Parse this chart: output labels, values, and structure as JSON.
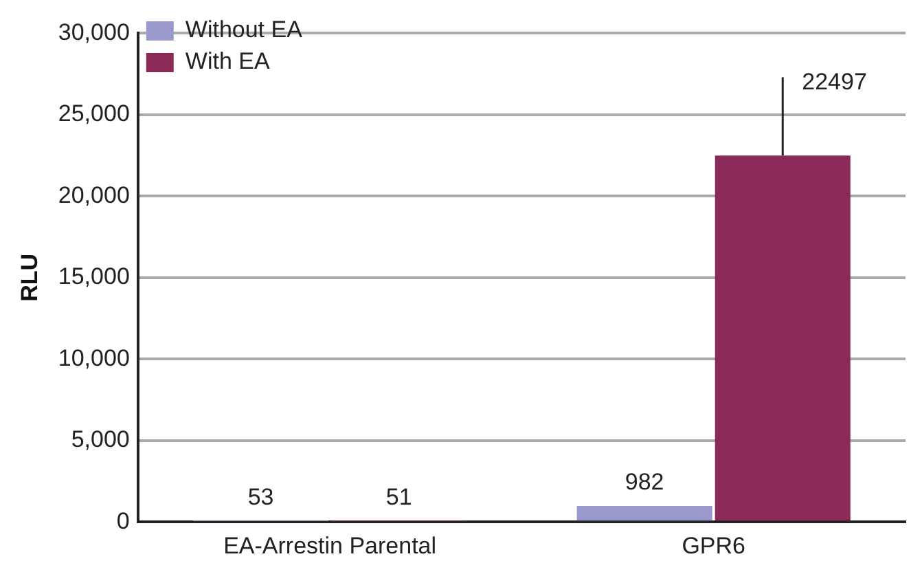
{
  "chart_data": {
    "type": "bar",
    "ylabel": "RLU",
    "categories": [
      "EA-Arrestin Parental",
      "GPR6"
    ],
    "series": [
      {
        "name": "Without EA",
        "color": "#9999cc",
        "values": [
          53,
          982
        ]
      },
      {
        "name": "With EA",
        "color": "#8b2a58",
        "values": [
          51,
          22497
        ],
        "errors": [
          null,
          [
            22497,
            27300
          ]
        ]
      }
    ],
    "ylim": [
      0,
      30000
    ],
    "yticks": [
      {
        "value": 0,
        "label": "0"
      },
      {
        "value": 5000,
        "label": "5,000"
      },
      {
        "value": 10000,
        "label": "10,000"
      },
      {
        "value": 15000,
        "label": "15,000"
      },
      {
        "value": 20000,
        "label": "20,000"
      },
      {
        "value": 25000,
        "label": "25,000"
      },
      {
        "value": 30000,
        "label": "30,000"
      }
    ],
    "grid": "y",
    "legend": "top left",
    "data_labels": true
  }
}
